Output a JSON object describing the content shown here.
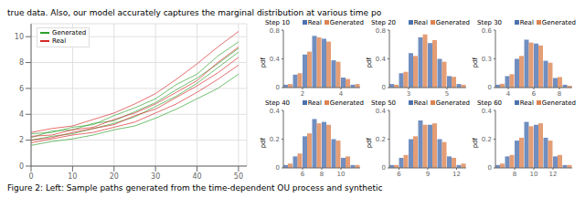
{
  "header_text": "true data. Also, our model accurately captures the marginal distribution at various time po",
  "caption": "Figure 2: Left: Sample paths generated from the time-dependent OU process and synthetic",
  "chart_data": [
    {
      "type": "line",
      "x": [
        0,
        5,
        10,
        15,
        20,
        25,
        30,
        35,
        40,
        45,
        50
      ],
      "xlim": [
        0,
        52
      ],
      "xticks": [
        0,
        10,
        20,
        30,
        40,
        50
      ],
      "ylim": [
        0,
        11
      ],
      "yticks": [
        0,
        2,
        4,
        6,
        8,
        10
      ],
      "grid": true,
      "legend": "upper left",
      "series": [
        {
          "name": "Generated",
          "color": "#2ca02c",
          "paths": [
            [
              2.0,
              2.3,
              2.5,
              2.9,
              3.3,
              3.8,
              4.6,
              5.4,
              6.4,
              7.6,
              8.8
            ],
            [
              2.5,
              2.6,
              3.0,
              3.2,
              3.9,
              4.5,
              5.2,
              6.3,
              7.1,
              8.5,
              9.6
            ],
            [
              1.6,
              1.9,
              2.1,
              2.4,
              2.8,
              3.1,
              3.7,
              4.4,
              5.2,
              6.0,
              7.1
            ],
            [
              2.2,
              2.7,
              2.8,
              3.3,
              3.5,
              4.2,
              4.9,
              5.9,
              6.8,
              7.9,
              9.1
            ]
          ]
        },
        {
          "name": "Real",
          "color": "#d62728",
          "paths": [
            [
              2.3,
              2.4,
              2.8,
              3.0,
              3.6,
              4.1,
              4.8,
              5.7,
              6.6,
              8.0,
              9.2
            ],
            [
              1.8,
              2.1,
              2.4,
              2.6,
              3.0,
              3.4,
              4.1,
              4.8,
              5.7,
              6.7,
              7.8
            ],
            [
              2.6,
              2.9,
              3.1,
              3.6,
              4.1,
              4.8,
              5.6,
              6.7,
              7.9,
              9.2,
              10.4
            ],
            [
              2.0,
              2.2,
              2.6,
              2.9,
              3.2,
              3.9,
              4.4,
              5.3,
              6.2,
              7.2,
              8.4
            ]
          ]
        }
      ]
    },
    {
      "type": "histogram",
      "title": "Step 10",
      "y_label": "pdf",
      "bins": [
        1,
        1.5,
        2,
        2.5,
        3,
        3.5,
        4,
        4.5,
        5
      ],
      "xlim": [
        1,
        5
      ],
      "xticks": [
        2,
        4
      ],
      "ylim": [
        0,
        0.8
      ],
      "yticks": [
        0,
        0.4,
        0.8
      ],
      "legend": "upper right",
      "series": [
        {
          "name": "Real",
          "color": "#4c72b0",
          "values": [
            0.04,
            0.18,
            0.46,
            0.72,
            0.68,
            0.38,
            0.14,
            0.04
          ]
        },
        {
          "name": "Generated",
          "color": "#dd8452",
          "values": [
            0.05,
            0.2,
            0.5,
            0.7,
            0.64,
            0.36,
            0.12,
            0.05
          ]
        }
      ]
    },
    {
      "type": "histogram",
      "title": "Step 20",
      "y_label": "pdf",
      "bins": [
        2,
        2.5,
        3,
        3.5,
        4,
        4.5,
        5,
        5.5,
        6
      ],
      "xlim": [
        2,
        6
      ],
      "xticks": [
        3,
        5
      ],
      "ylim": [
        0,
        0.8
      ],
      "yticks": [
        0,
        0.4,
        0.8
      ],
      "legend": "upper right",
      "series": [
        {
          "name": "Real",
          "color": "#4c72b0",
          "values": [
            0.05,
            0.2,
            0.48,
            0.7,
            0.62,
            0.4,
            0.16,
            0.05
          ]
        },
        {
          "name": "Generated",
          "color": "#dd8452",
          "values": [
            0.04,
            0.22,
            0.44,
            0.74,
            0.66,
            0.36,
            0.15,
            0.04
          ]
        }
      ]
    },
    {
      "type": "histogram",
      "title": "Step 30",
      "y_label": "pdf",
      "bins": [
        3,
        3.75,
        4.5,
        5.25,
        6,
        6.75,
        7.5,
        8.25,
        9
      ],
      "xlim": [
        3,
        9
      ],
      "xticks": [
        4,
        6,
        8
      ],
      "ylim": [
        0,
        0.6
      ],
      "yticks": [
        0,
        0.3,
        0.6
      ],
      "legend": "upper right",
      "series": [
        {
          "name": "Real",
          "color": "#4c72b0",
          "values": [
            0.03,
            0.12,
            0.3,
            0.5,
            0.46,
            0.28,
            0.1,
            0.03
          ]
        },
        {
          "name": "Generated",
          "color": "#dd8452",
          "values": [
            0.04,
            0.14,
            0.33,
            0.47,
            0.44,
            0.26,
            0.11,
            0.02
          ]
        }
      ]
    },
    {
      "type": "histogram",
      "title": "Step 40",
      "y_label": "pdf",
      "bins": [
        4,
        5,
        6,
        7,
        8,
        9,
        10,
        11,
        12
      ],
      "xlim": [
        4,
        12
      ],
      "xticks": [
        6,
        8,
        10
      ],
      "ylim": [
        0,
        0.4
      ],
      "yticks": [
        0,
        0.2,
        0.4
      ],
      "legend": "upper right",
      "series": [
        {
          "name": "Real",
          "color": "#4c72b0",
          "values": [
            0.02,
            0.08,
            0.22,
            0.34,
            0.32,
            0.2,
            0.07,
            0.02
          ]
        },
        {
          "name": "Generated",
          "color": "#dd8452",
          "values": [
            0.03,
            0.1,
            0.24,
            0.31,
            0.3,
            0.19,
            0.08,
            0.02
          ]
        }
      ]
    },
    {
      "type": "histogram",
      "title": "Step 50",
      "y_label": "pdf",
      "bins": [
        5,
        6,
        7,
        8,
        9,
        10,
        11,
        12,
        13
      ],
      "xlim": [
        5,
        13
      ],
      "xticks": [
        6,
        9,
        12
      ],
      "ylim": [
        0,
        0.4
      ],
      "yticks": [
        0,
        0.2,
        0.4
      ],
      "legend": "upper right",
      "series": [
        {
          "name": "Real",
          "color": "#4c72b0",
          "values": [
            0.02,
            0.07,
            0.2,
            0.33,
            0.3,
            0.2,
            0.08,
            0.02
          ]
        },
        {
          "name": "Generated",
          "color": "#dd8452",
          "values": [
            0.02,
            0.09,
            0.22,
            0.3,
            0.31,
            0.18,
            0.07,
            0.03
          ]
        }
      ]
    },
    {
      "type": "histogram",
      "title": "Step 60",
      "y_label": "pdf",
      "bins": [
        6,
        7,
        8,
        9,
        10,
        11,
        12,
        13,
        14
      ],
      "xlim": [
        6,
        14
      ],
      "xticks": [
        8,
        10,
        12
      ],
      "ylim": [
        0,
        0.4
      ],
      "yticks": [
        0,
        0.2,
        0.4
      ],
      "legend": "upper right",
      "series": [
        {
          "name": "Real",
          "color": "#4c72b0",
          "values": [
            0.02,
            0.08,
            0.19,
            0.32,
            0.3,
            0.21,
            0.08,
            0.02
          ]
        },
        {
          "name": "Generated",
          "color": "#dd8452",
          "values": [
            0.03,
            0.09,
            0.21,
            0.29,
            0.31,
            0.19,
            0.09,
            0.02
          ]
        }
      ]
    }
  ]
}
